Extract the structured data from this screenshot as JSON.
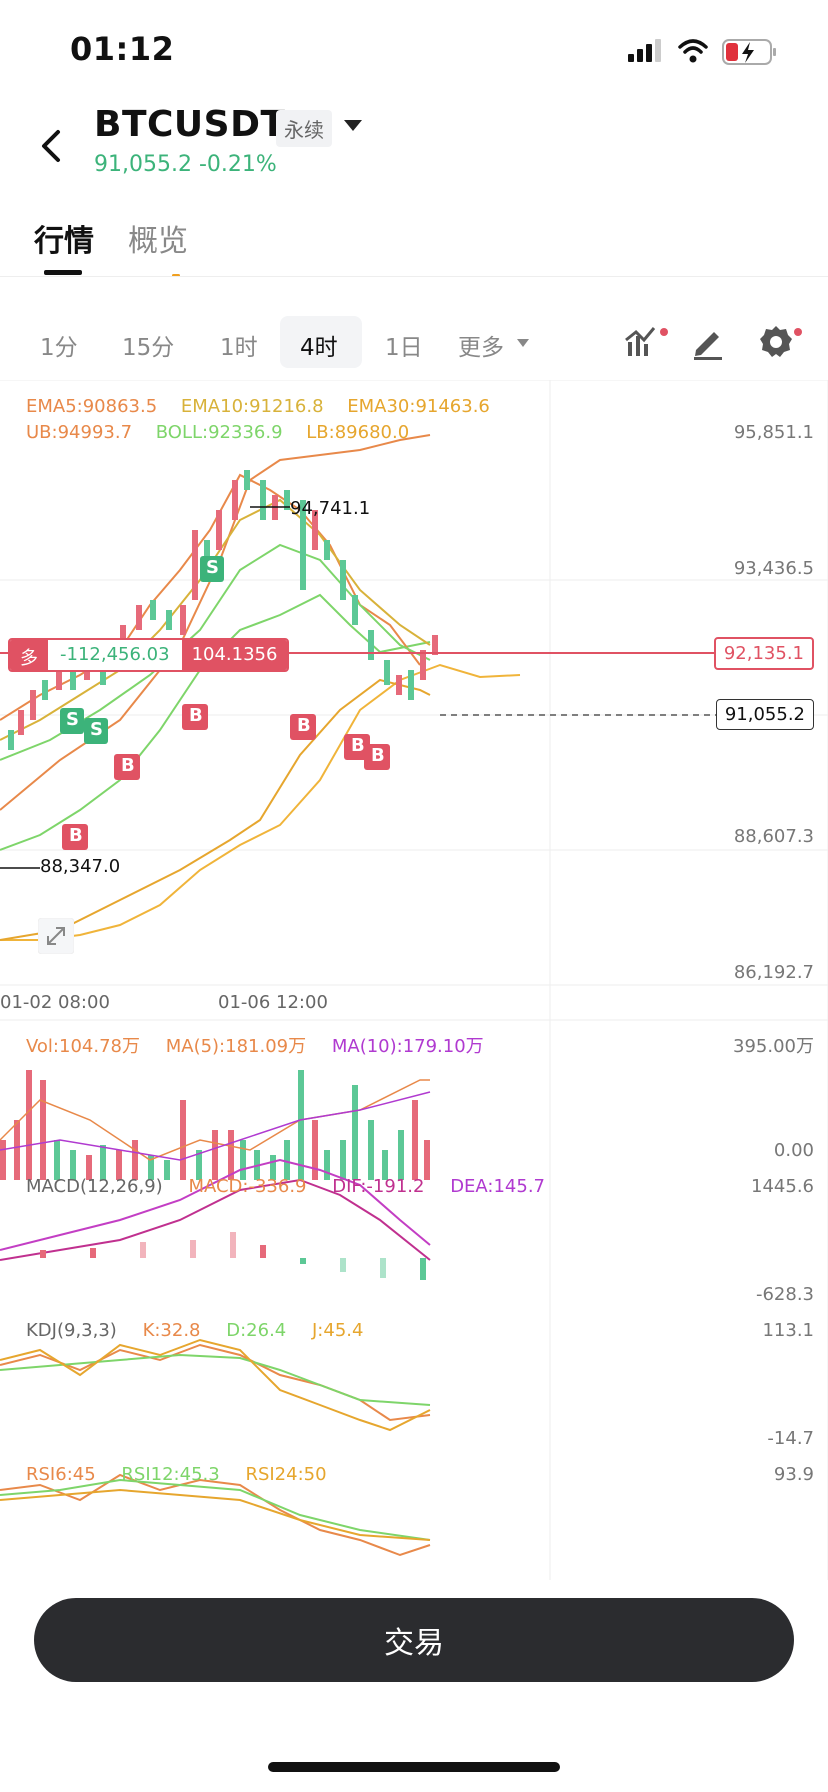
{
  "status_bar": {
    "time": "01:12",
    "icons": [
      "signal-icon",
      "wifi-icon",
      "battery-icon"
    ]
  },
  "header": {
    "symbol": "BTCUSDT",
    "contract_type": "永续",
    "price": "91,055.2",
    "change": "-0.21%"
  },
  "tabs": [
    {
      "label": "行情",
      "active": true
    },
    {
      "label": "概览",
      "active": false
    }
  ],
  "intervals": [
    {
      "label": "1分"
    },
    {
      "label": "15分"
    },
    {
      "label": "1时"
    },
    {
      "label": "4时",
      "active": true
    },
    {
      "label": "1日"
    },
    {
      "label": "更多"
    }
  ],
  "toolbar_icons": [
    "indicator-icon",
    "draw-icon",
    "settings-icon"
  ],
  "main_chart": {
    "ema_legend": [
      {
        "text": "EMA5:90863.5",
        "color": "#e8894a"
      },
      {
        "text": "EMA10:91216.8",
        "color": "#d8b23a"
      },
      {
        "text": "EMA30:91463.6",
        "color": "#e6a62e"
      }
    ],
    "boll_legend": [
      {
        "text": "UB:94993.7",
        "color": "#e8894a"
      },
      {
        "text": "BOLL:92336.9",
        "color": "#7ed56a"
      },
      {
        "text": "LB:89680.0",
        "color": "#e6a62e"
      }
    ],
    "y_labels": [
      "95,851.1",
      "93,436.5",
      "88,607.3",
      "86,192.7"
    ],
    "high_label": "94,741.1",
    "low_label": "88,347.0",
    "x_labels": [
      "01-02 08:00",
      "01-06 12:00"
    ],
    "position": {
      "side": "多",
      "pnl": "-112,456.03",
      "qty": "104.1356",
      "entry_price": "92,135.1"
    },
    "last_price_tag": "91,055.2",
    "trade_markers": [
      "S",
      "S",
      "S",
      "B",
      "B",
      "B",
      "B",
      "B",
      "B"
    ]
  },
  "volume": {
    "vol": "Vol:104.78万",
    "ma5": "MA(5):181.09万",
    "ma10": "MA(10):179.10万",
    "y_max": "395.00万",
    "y_min": "0.00"
  },
  "macd": {
    "label": "MACD(12,26,9)",
    "macd": "MACD:-336.9",
    "dif": "DIF:-191.2",
    "dea": "DEA:145.7",
    "y_max": "1445.6",
    "y_min": "-628.3"
  },
  "kdj": {
    "label": "KDJ(9,3,3)",
    "k": "K:32.8",
    "d": "D:26.4",
    "j": "J:45.4",
    "y_max": "113.1",
    "y_min": "-14.7"
  },
  "rsi": {
    "rsi6": "RSI6:45",
    "rsi12": "RSI12:45.3",
    "rsi24": "RSI24:50",
    "y_max": "93.9"
  },
  "trade_button": "交易",
  "colors": {
    "up": "#3cb37a",
    "down": "#e05263",
    "up_bar": "#5cc896",
    "down_bar": "#e66a7a"
  }
}
